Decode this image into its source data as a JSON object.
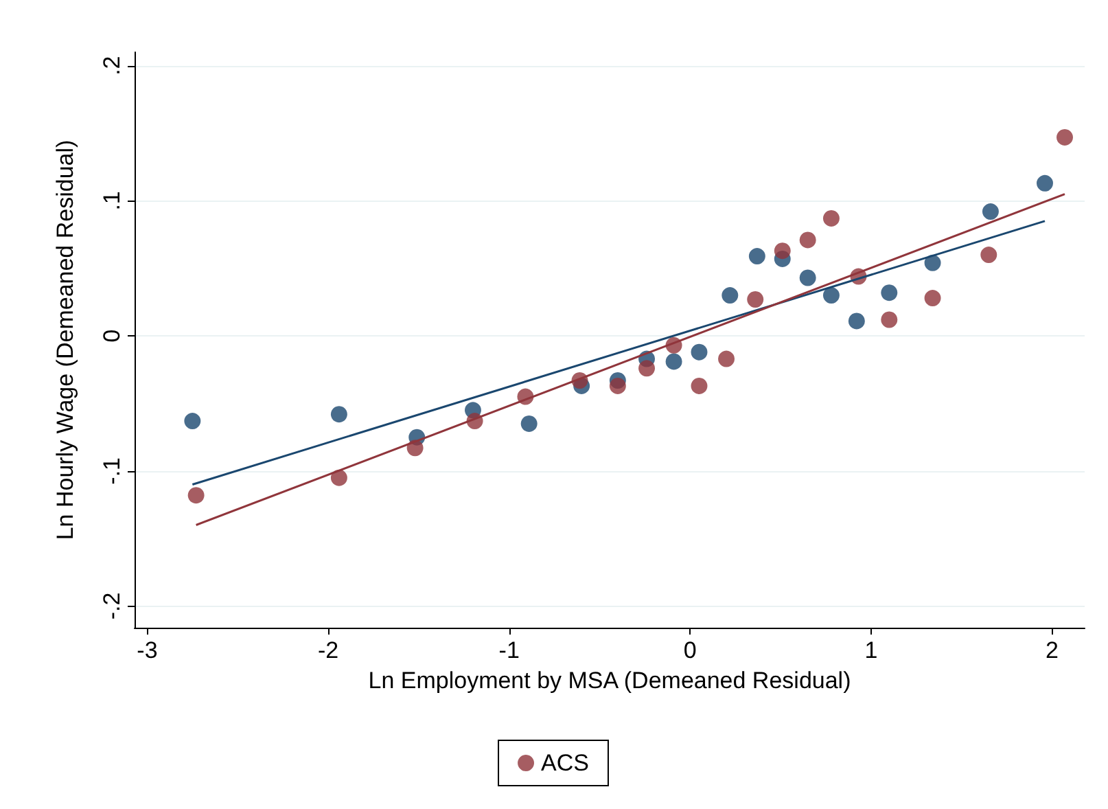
{
  "chart_data": {
    "type": "scatter",
    "xlabel": "Ln Employment by MSA (Demeaned Residual)",
    "ylabel": "Ln Hourly Wage (Demeaned Residual)",
    "xlim": [
      -3.07,
      2.18
    ],
    "xticks": [
      -3,
      -2,
      -1,
      0,
      1,
      2
    ],
    "ylim": [
      -0.216,
      0.21
    ],
    "yticks": [
      {
        "value": -0.2,
        "label": "-.2"
      },
      {
        "value": -0.1,
        "label": "-.1"
      },
      0,
      {
        "value": 0.1,
        "label": ".1"
      },
      {
        "value": 0.2,
        "label": ".2"
      }
    ],
    "grid": "y",
    "legend": "bottom",
    "marker": "circle",
    "series": [
      {
        "color": "#1a476f",
        "x": [
          -2.75,
          -1.94,
          -1.51,
          -1.2,
          -0.89,
          -0.6,
          -0.4,
          -0.24,
          -0.09,
          0.05,
          0.22,
          0.37,
          0.51,
          0.65,
          0.78,
          0.92,
          1.1,
          1.34,
          1.66,
          1.96
        ],
        "values": [
          -0.063,
          -0.058,
          -0.075,
          -0.055,
          -0.065,
          -0.037,
          -0.033,
          -0.017,
          -0.019,
          -0.012,
          0.03,
          0.059,
          0.057,
          0.043,
          0.03,
          0.011,
          0.032,
          0.054,
          0.092,
          0.113
        ]
      },
      {
        "name": "ACS",
        "color": "#90353b",
        "x": [
          -2.73,
          -1.94,
          -1.52,
          -1.19,
          -0.91,
          -0.61,
          -0.4,
          -0.24,
          -0.09,
          0.05,
          0.2,
          0.36,
          0.51,
          0.65,
          0.78,
          0.93,
          1.1,
          1.34,
          1.65,
          2.07
        ],
        "values": [
          -0.118,
          -0.105,
          -0.083,
          -0.063,
          -0.045,
          -0.033,
          -0.037,
          -0.024,
          -0.007,
          -0.037,
          -0.017,
          0.027,
          0.063,
          0.071,
          0.087,
          0.044,
          0.012,
          0.028,
          0.06,
          0.147
        ]
      },
      {
        "type": "line",
        "marker": "none",
        "color": "#1a476f",
        "x": [
          -2.75,
          1.96
        ],
        "values": [
          -0.11,
          0.085
        ]
      },
      {
        "type": "line",
        "marker": "none",
        "color": "#90353b",
        "x": [
          -2.73,
          2.07
        ],
        "values": [
          -0.14,
          0.105
        ]
      }
    ]
  }
}
